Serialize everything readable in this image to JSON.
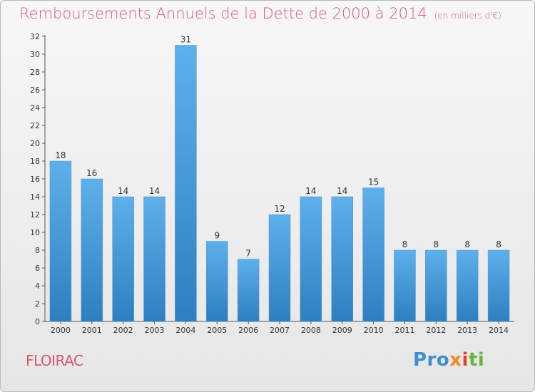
{
  "header": {
    "title": "Remboursements Annuels de la Dette de 2000 à 2014",
    "subtitle": "(en milliers d'€)"
  },
  "footer": {
    "town": "FLOIRAC",
    "logo": [
      "Pro",
      "x",
      "i",
      "ti"
    ]
  },
  "colors": {
    "title": "#d45a6e",
    "bar_top": "#5eb0ea",
    "bar_bottom": "#2e7fc0",
    "logo_blue": "#3f8fd0",
    "logo_orange": "#f08a1c",
    "logo_red": "#e2432e",
    "logo_green": "#68b43c"
  },
  "chart_data": {
    "type": "bar",
    "title": "Remboursements Annuels de la Dette de 2000 à 2014",
    "subtitle": "(en milliers d'€)",
    "categories": [
      "2000",
      "2001",
      "2002",
      "2003",
      "2004",
      "2005",
      "2006",
      "2007",
      "2008",
      "2009",
      "2010",
      "2011",
      "2012",
      "2013",
      "2014"
    ],
    "values": [
      18,
      16,
      14,
      14,
      31,
      9,
      7,
      12,
      14,
      14,
      15,
      8,
      8,
      8,
      8
    ],
    "ylim": [
      0,
      32
    ],
    "yticks": [
      0,
      2,
      4,
      6,
      8,
      10,
      12,
      14,
      16,
      18,
      20,
      22,
      24,
      26,
      28,
      30,
      32
    ],
    "grid": false,
    "show_value_labels": true
  }
}
